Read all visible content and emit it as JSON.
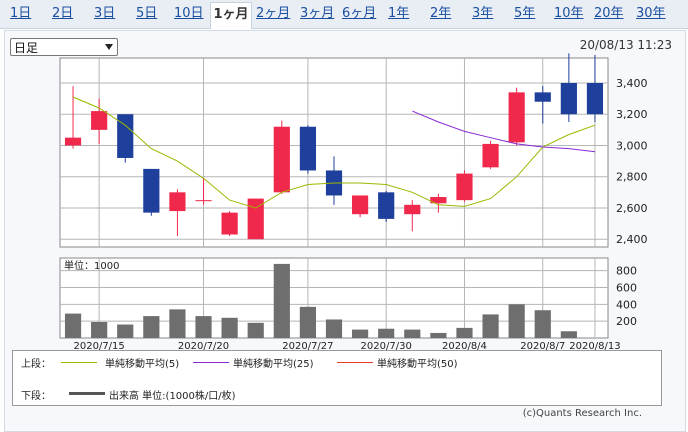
{
  "tabs": [
    {
      "label": "1日"
    },
    {
      "label": "2日"
    },
    {
      "label": "3日"
    },
    {
      "label": "5日"
    },
    {
      "label": "10日"
    },
    {
      "label": "1ヶ月"
    },
    {
      "label": "2ヶ月"
    },
    {
      "label": "3ヶ月"
    },
    {
      "label": "6ヶ月"
    },
    {
      "label": "1年"
    },
    {
      "label": "2年"
    },
    {
      "label": "3年"
    },
    {
      "label": "5年"
    },
    {
      "label": "10年"
    },
    {
      "label": "20年"
    },
    {
      "label": "30年"
    }
  ],
  "active_tab": "1ヶ月",
  "select": {
    "value": "日足"
  },
  "datetime": "20/08/13 11:23",
  "legend": {
    "upper_label": "上段：",
    "lower_label": "下段：",
    "ma5": "単純移動平均(5)",
    "ma25": "単純移動平均(25)",
    "ma50": "単純移動平均(50)",
    "volume": "出来高 単位:(1000株/口/枚)",
    "ma5_color": "#9ab800",
    "ma25_color": "#8a2ad6",
    "ma50_color": "#e33a2a",
    "volume_color": "#555555"
  },
  "credit": "(c)Quants Research Inc.",
  "colors": {
    "up": "#f0284c",
    "down": "#1f3f9c",
    "volume_bar": "#6e6e6e"
  },
  "chart_data": [
    {
      "type": "candlestick",
      "x": [
        "2020/7/14",
        "2020/7/15",
        "2020/7/16",
        "2020/7/17",
        "2020/7/20",
        "2020/7/21",
        "2020/7/22",
        "2020/7/24",
        "2020/7/27",
        "2020/7/28",
        "2020/7/29",
        "2020/7/30",
        "2020/7/31",
        "2020/8/3",
        "2020/8/4",
        "2020/8/5",
        "2020/8/6",
        "2020/8/7",
        "2020/8/11",
        "2020/8/12",
        "2020/8/13"
      ],
      "x_tick_labels": [
        "2020/7/15",
        "2020/7/20",
        "2020/7/27",
        "2020/7/30",
        "2020/8/4",
        "2020/8/7",
        "2020/8/13"
      ],
      "x_tick_index": [
        1,
        5,
        9,
        12,
        15,
        18,
        20
      ],
      "open": [
        3000,
        3100,
        3200,
        2850,
        2580,
        2650,
        2430,
        2400,
        2700,
        3120,
        2840,
        2560,
        2700,
        2560,
        2630,
        2650,
        2860,
        3020,
        3340,
        3400,
        3400
      ],
      "close": [
        3050,
        3220,
        2920,
        2570,
        2700,
        2650,
        2570,
        2660,
        3120,
        2840,
        2680,
        2680,
        2530,
        2620,
        2670,
        2820,
        3010,
        3340,
        3280,
        3200,
        3200
      ],
      "high": [
        3380,
        3300,
        3200,
        2850,
        2720,
        2790,
        2580,
        2660,
        3160,
        3130,
        2930,
        2680,
        2710,
        2650,
        2690,
        2840,
        3030,
        3370,
        3380,
        3590,
        3580
      ],
      "low": [
        2980,
        3010,
        2890,
        2550,
        2420,
        2620,
        2420,
        2400,
        2690,
        2820,
        2620,
        2540,
        2510,
        2450,
        2570,
        2640,
        2850,
        3000,
        3140,
        3150,
        3150
      ],
      "ma5": [
        3310,
        3240,
        3130,
        2980,
        2900,
        2790,
        2650,
        2600,
        2700,
        2750,
        2760,
        2760,
        2750,
        2700,
        2620,
        2610,
        2660,
        2800,
        2990,
        3070,
        3130
      ],
      "ma25": [
        null,
        null,
        null,
        null,
        null,
        null,
        null,
        null,
        null,
        null,
        null,
        null,
        null,
        3220,
        3150,
        3090,
        3050,
        3010,
        2990,
        2980,
        2960
      ],
      "y_ticks": [
        2400,
        2600,
        2800,
        3000,
        3200,
        3400
      ],
      "y_tick_labels": [
        "2,400",
        "2,600",
        "2,800",
        "3,000",
        "3,200",
        "3,400"
      ],
      "ylim": [
        2350,
        3560
      ]
    },
    {
      "type": "bar",
      "title": "単位：1000",
      "values": [
        290,
        190,
        160,
        260,
        340,
        260,
        240,
        180,
        880,
        370,
        220,
        100,
        110,
        100,
        60,
        120,
        280,
        400,
        330,
        80,
        0
      ],
      "y_ticks": [
        200,
        400,
        600,
        800
      ],
      "y_tick_labels": [
        "200",
        "400",
        "600",
        "800"
      ],
      "ylim": [
        0,
        950
      ]
    }
  ]
}
